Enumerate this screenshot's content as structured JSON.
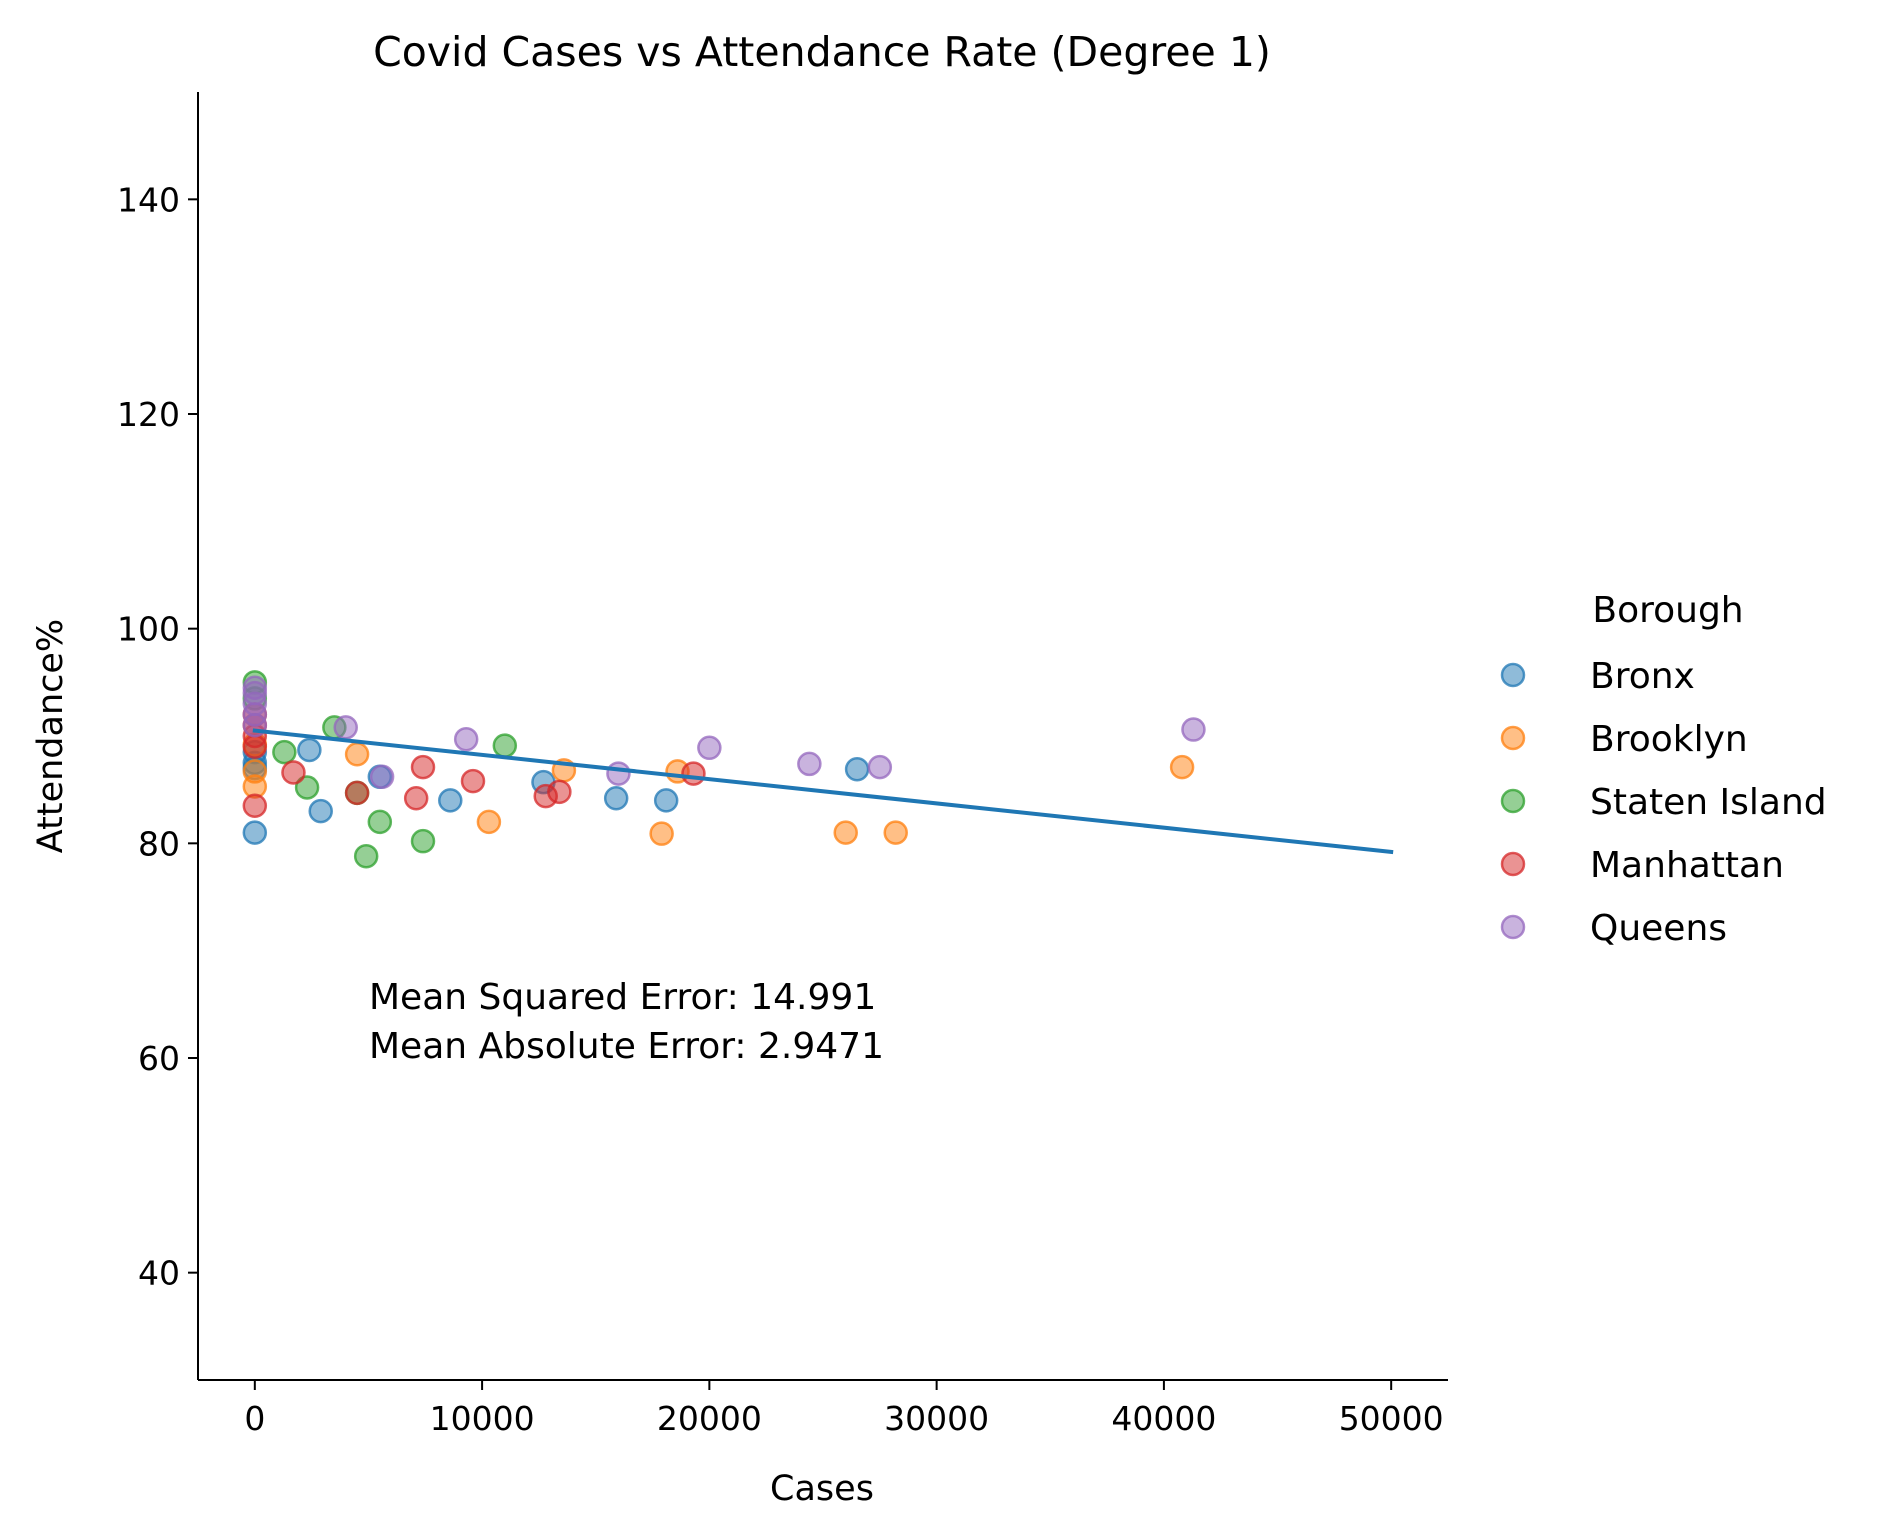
{
  "chart_data": {
    "type": "scatter",
    "title": "Covid Cases vs Attendance Rate (Degree 1)",
    "xlabel": "Cases",
    "ylabel": "Attendance%",
    "xlim": [
      -2500,
      52500
    ],
    "ylim": [
      30,
      150
    ],
    "xticks": [
      0,
      10000,
      20000,
      30000,
      40000,
      50000
    ],
    "xtick_labels": [
      "0",
      "10000",
      "20000",
      "30000",
      "40000",
      "50000"
    ],
    "yticks": [
      40,
      60,
      80,
      100,
      120,
      140
    ],
    "ytick_labels": [
      "40",
      "60",
      "80",
      "100",
      "120",
      "140"
    ],
    "grid": false,
    "legend": {
      "title": "Borough",
      "placement": "right",
      "items": [
        "Bronx",
        "Brooklyn",
        "Staten Island",
        "Manhattan",
        "Queens"
      ]
    },
    "series": [
      {
        "name": "Bronx",
        "color": "#1f77b4",
        "points": [
          [
            0,
            81.0
          ],
          [
            0,
            87.0
          ],
          [
            0,
            87.5
          ],
          [
            0,
            88.5
          ],
          [
            2400,
            88.7
          ],
          [
            2900,
            83.0
          ],
          [
            5500,
            86.2
          ],
          [
            8600,
            84.0
          ],
          [
            12700,
            85.7
          ],
          [
            15900,
            84.2
          ],
          [
            18100,
            84.0
          ],
          [
            26500,
            86.9
          ]
        ]
      },
      {
        "name": "Brooklyn",
        "color": "#ff7f0e",
        "points": [
          [
            0,
            85.3
          ],
          [
            0,
            86.7
          ],
          [
            0,
            89.2
          ],
          [
            4500,
            88.3
          ],
          [
            10300,
            82.0
          ],
          [
            13600,
            86.8
          ],
          [
            17900,
            80.9
          ],
          [
            18600,
            86.7
          ],
          [
            26000,
            81.0
          ],
          [
            28200,
            81.0
          ],
          [
            40800,
            87.1
          ]
        ]
      },
      {
        "name": "Staten Island",
        "color": "#2ca02c",
        "points": [
          [
            0,
            95.0
          ],
          [
            0,
            93.5
          ],
          [
            1300,
            88.5
          ],
          [
            2300,
            85.2
          ],
          [
            3500,
            90.8
          ],
          [
            4500,
            84.7
          ],
          [
            4900,
            78.8
          ],
          [
            5500,
            82.0
          ],
          [
            7400,
            80.2
          ],
          [
            11000,
            89.1
          ]
        ]
      },
      {
        "name": "Manhattan",
        "color": "#d62728",
        "points": [
          [
            0,
            83.5
          ],
          [
            0,
            89.0
          ],
          [
            0,
            90.0
          ],
          [
            0,
            91.0
          ],
          [
            0,
            92.0
          ],
          [
            1700,
            86.6
          ],
          [
            4500,
            84.7
          ],
          [
            7100,
            84.2
          ],
          [
            7400,
            87.1
          ],
          [
            9600,
            85.8
          ],
          [
            12800,
            84.4
          ],
          [
            13400,
            84.8
          ],
          [
            19300,
            86.5
          ]
        ]
      },
      {
        "name": "Queens",
        "color": "#9467bd",
        "points": [
          [
            0,
            91.0
          ],
          [
            0,
            92.0
          ],
          [
            0,
            93.0
          ],
          [
            0,
            94.0
          ],
          [
            0,
            94.5
          ],
          [
            4000,
            90.8
          ],
          [
            5600,
            86.2
          ],
          [
            9300,
            89.7
          ],
          [
            16000,
            86.5
          ],
          [
            20000,
            88.9
          ],
          [
            24400,
            87.4
          ],
          [
            27500,
            87.1
          ],
          [
            41300,
            90.6
          ]
        ]
      }
    ],
    "regression_line": {
      "color": "#1f77b4",
      "points": [
        [
          0,
          90.5
        ],
        [
          50000,
          79.2
        ]
      ]
    },
    "annotations": [
      "Mean Squared Error: 14.991",
      "Mean Absolute Error: 2.9471"
    ]
  }
}
